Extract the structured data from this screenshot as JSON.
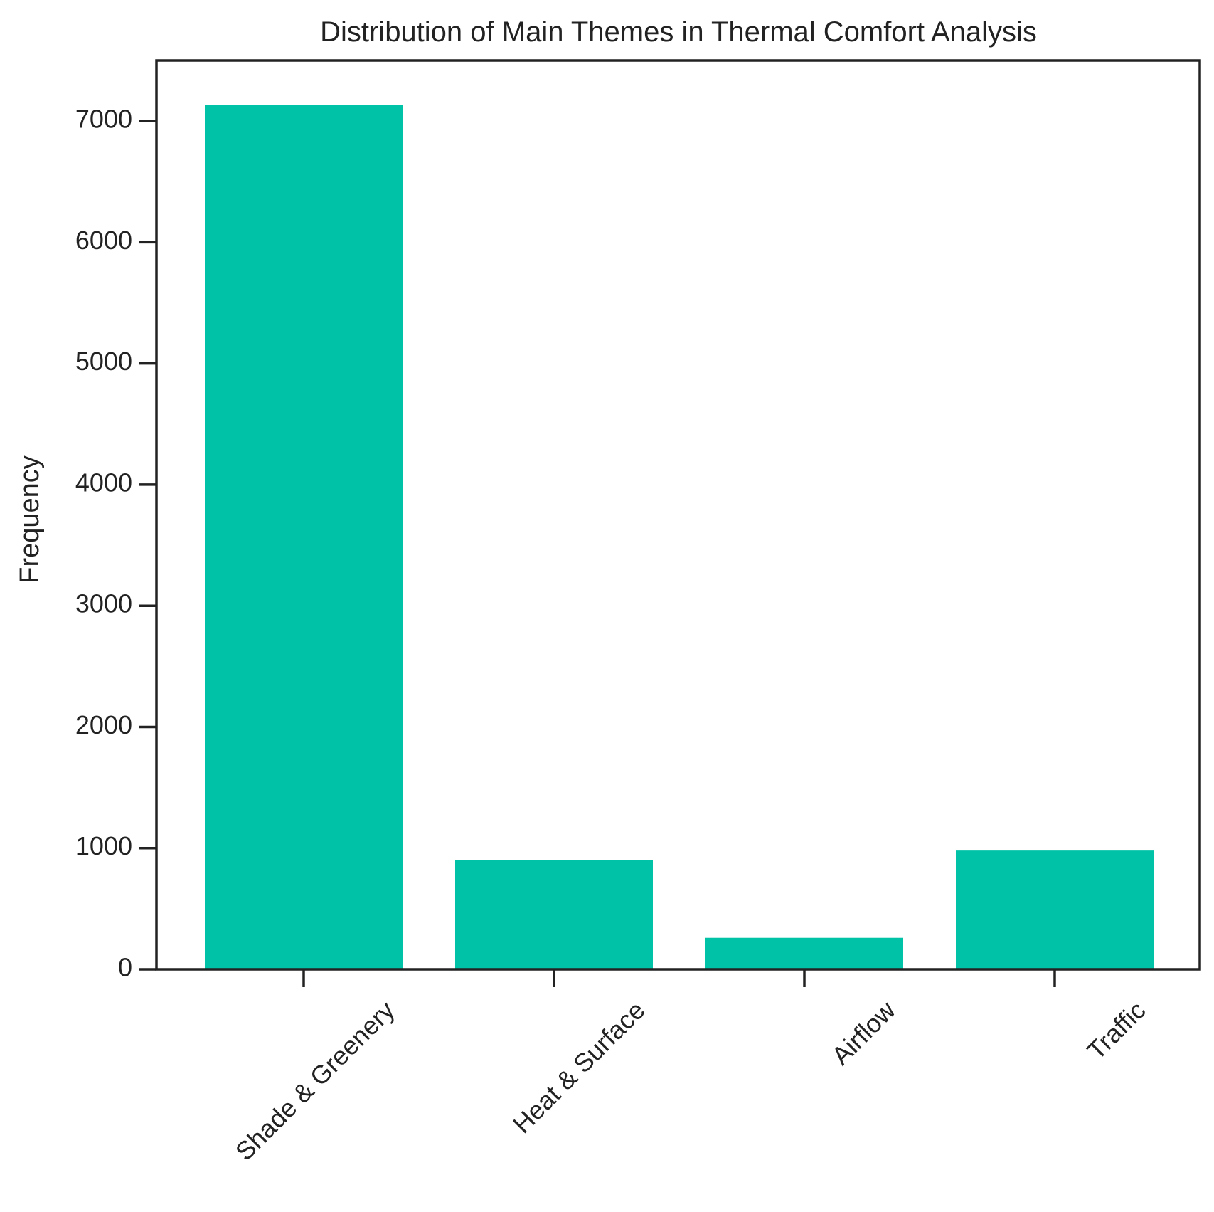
{
  "chart_data": {
    "type": "bar",
    "title": "Distribution of Main Themes in Thermal Comfort Analysis",
    "xlabel": "",
    "ylabel": "Frequency",
    "categories": [
      "Shade & Greenery",
      "Heat & Surface",
      "Airflow",
      "Traffic"
    ],
    "values": [
      7130,
      900,
      260,
      980
    ],
    "ylim": [
      0,
      7500
    ],
    "yticks": [
      0,
      1000,
      2000,
      3000,
      4000,
      5000,
      6000,
      7000
    ],
    "ytick_labels": [
      "0",
      "1000",
      "2000",
      "3000",
      "4000",
      "5000",
      "6000",
      "7000"
    ],
    "xtick_rotation": 45,
    "grid": false,
    "legend": "none",
    "colors": {
      "bar": "#00c2a6",
      "axis": "#222222"
    }
  }
}
